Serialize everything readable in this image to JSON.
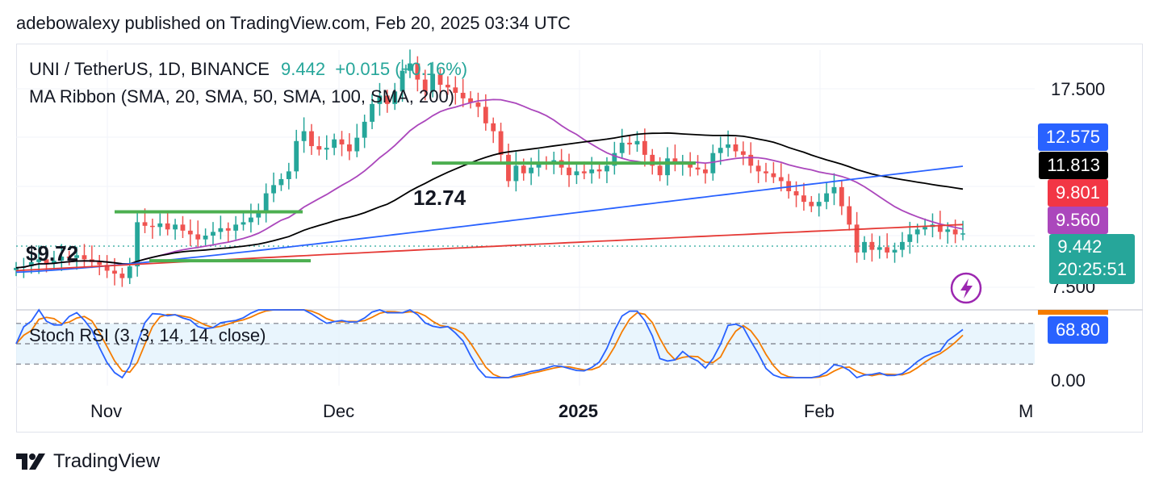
{
  "publisher_line": "adebowalexy published on TradingView.com, Feb 20, 2025 03:34 UTC",
  "brand": {
    "name": "TradingView",
    "icon": "tradingview-logo-icon"
  },
  "legend": {
    "symbol": "UNI / TetherUS, 1D, BINANCE",
    "price": "9.442",
    "change": "+0.015 (+0.16%)",
    "indicator": "MA Ribbon (SMA, 20, SMA, 50, SMA, 100, SMA, 200)",
    "oscillator": "Stoch RSI (3, 3, 14, 14, close)"
  },
  "annotations": {
    "support_low": "$9.72",
    "support_mid": "12.74"
  },
  "price_axis": {
    "labels": [
      "17.500",
      "7.500"
    ]
  },
  "osc_axis": {
    "labels": [
      "0.00"
    ]
  },
  "time_axis": {
    "labels": [
      "Nov",
      "Dec",
      "2025",
      "Feb",
      "M"
    ]
  },
  "price_tags": [
    {
      "value": "12.575",
      "color": "#2962ff",
      "text_color": "#ffffff"
    },
    {
      "value": "11.813",
      "color": "#000000",
      "text_color": "#ffffff"
    },
    {
      "value": "9.801",
      "color": "#f23645",
      "text_color": "#ffffff"
    },
    {
      "value": "9.560",
      "color": "#ab47bc",
      "text_color": "#ffffff"
    },
    {
      "value": "9.442",
      "sub": "20:25:51",
      "color": "#26a69a",
      "text_color": "#ffffff"
    }
  ],
  "osc_tag": {
    "value": "68.80",
    "color": "#2962ff"
  },
  "colors": {
    "up": "#26a69a",
    "down": "#ef5350",
    "sma20": "#ab47bc",
    "sma50": "#000000",
    "sma100": "#2962ff",
    "sma200": "#e53935",
    "support": "#4caf50",
    "stoch_k": "#2962ff",
    "stoch_d": "#f57c00",
    "band": "#e3f2fd"
  },
  "chart_data": {
    "type": "candlestick",
    "symbol": "UNI / TetherUS",
    "interval": "1D",
    "exchange": "BINANCE",
    "last_price": 9.442,
    "x_range": [
      "2024-10-23",
      "2025-02-20"
    ],
    "ohlc_bodies_description": "daily candles",
    "closes": [
      8.15,
      8.2,
      8.35,
      8.45,
      8.3,
      8.4,
      8.55,
      8.5,
      8.6,
      8.45,
      8.35,
      8.25,
      8.05,
      7.95,
      7.8,
      8.2,
      9.9,
      9.75,
      9.7,
      9.85,
      9.6,
      9.8,
      9.55,
      9.4,
      9.2,
      9.35,
      9.5,
      9.65,
      9.55,
      9.8,
      9.9,
      10.1,
      10.4,
      11.2,
      11.6,
      11.9,
      12.3,
      14.0,
      14.6,
      13.7,
      13.5,
      13.6,
      14.1,
      13.8,
      13.4,
      14.2,
      15.2,
      16.4,
      17.0,
      16.4,
      17.3,
      18.9,
      19.5,
      18.2,
      17.3,
      18.6,
      17.8,
      17.6,
      17.2,
      16.8,
      16.5,
      16.2,
      15.1,
      14.6,
      13.2,
      11.8,
      12.6,
      12.2,
      12.5,
      12.8,
      12.7,
      12.9,
      12.5,
      12.1,
      12.3,
      12.2,
      12.4,
      12.3,
      12.6,
      13.3,
      13.9,
      13.8,
      14.0,
      13.2,
      12.6,
      12.1,
      13.0,
      12.7,
      12.8,
      12.5,
      12.4,
      12.2,
      13.3,
      13.6,
      13.8,
      13.4,
      13.2,
      12.6,
      12.3,
      12.2,
      12.0,
      11.8,
      11.3,
      11.1,
      10.8,
      10.6,
      10.8,
      11.2,
      11.5,
      10.6,
      9.8,
      8.7,
      9.1,
      8.8,
      8.9,
      8.7,
      8.8,
      9.1,
      9.4,
      9.6,
      9.7,
      9.8,
      9.5,
      9.6,
      9.4,
      9.44
    ],
    "ma_ribbon": {
      "sma20_last": 9.56,
      "sma50_last": 11.813,
      "sma100_last": 12.575,
      "sma200_last": 9.801
    },
    "support_lines": [
      {
        "label": "$9.72",
        "level": 9.72
      },
      {
        "label": "12.74",
        "level": 12.74
      }
    ],
    "stoch_rsi": {
      "k_last": 68.8,
      "bands": [
        80,
        20
      ]
    },
    "price_ticks": [
      17.5,
      7.5
    ],
    "time_ticks": [
      "Nov",
      "Dec",
      "2025",
      "Feb",
      "M"
    ]
  }
}
